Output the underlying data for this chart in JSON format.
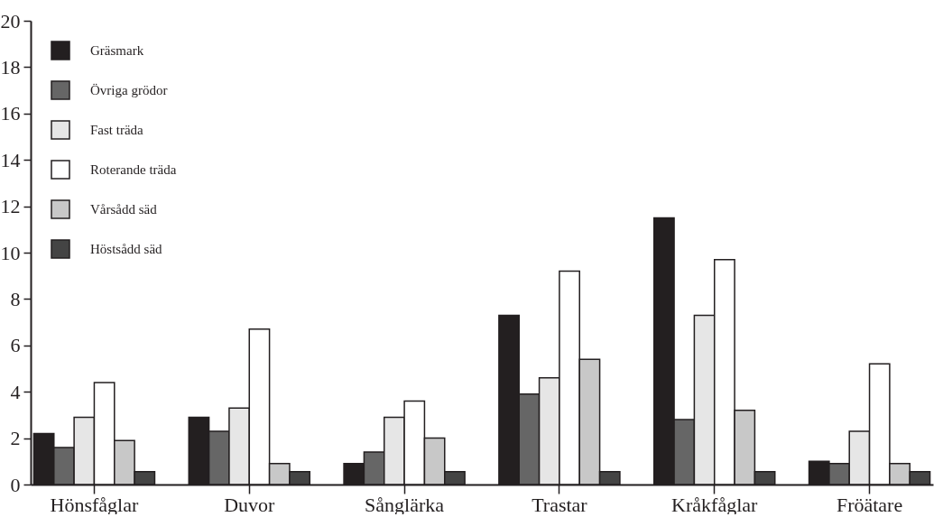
{
  "chart_data": {
    "type": "bar",
    "categories": [
      "Hönsfåglar",
      "Duvor",
      "Sånglärka",
      "Trastar",
      "Kråkfåglar",
      "Fröätare"
    ],
    "series": [
      {
        "name": "Gräsmark",
        "color": "#231f20",
        "values": [
          2.2,
          2.9,
          0.9,
          7.3,
          11.5,
          1.0
        ]
      },
      {
        "name": "Övriga grödor",
        "color": "#666666",
        "values": [
          1.6,
          2.3,
          1.4,
          3.9,
          2.8,
          0.9
        ]
      },
      {
        "name": "Fast träda",
        "color": "#e6e6e6",
        "values": [
          2.9,
          3.3,
          2.9,
          4.6,
          7.3,
          2.3
        ]
      },
      {
        "name": "Roterande träda",
        "color": "#ffffff",
        "values": [
          4.4,
          6.7,
          3.6,
          9.2,
          9.7,
          5.2
        ]
      },
      {
        "name": "Vårsådd säd",
        "color": "#c8c8c8",
        "values": [
          1.9,
          0.9,
          2.0,
          5.4,
          3.2,
          0.9
        ]
      },
      {
        "name": "Höstsådd säd",
        "color": "#444444",
        "values": [
          0.55,
          0.55,
          0.55,
          0.55,
          0.55,
          0.55
        ]
      }
    ],
    "ylim": [
      0,
      20
    ],
    "yticks": [
      0,
      2,
      4,
      6,
      8,
      10,
      12,
      14,
      16,
      18,
      20
    ],
    "grid": false,
    "legend": "top left"
  }
}
